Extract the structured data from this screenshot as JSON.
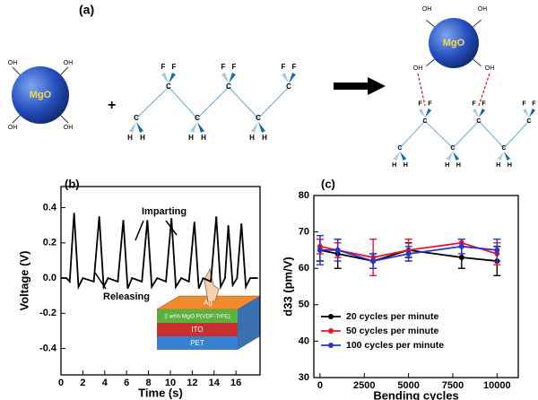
{
  "diagram": {
    "label": "(a)",
    "mgo": "MgO",
    "oh": "OH",
    "f": "F",
    "c": "C",
    "h": "H",
    "plus": "+"
  },
  "chart_data": [
    {
      "type": "line",
      "panel": "(b)",
      "xlabel": "Time (s)",
      "ylabel": "Voltage (V)",
      "x": [
        0,
        0.5,
        0.8,
        1.2,
        1.6,
        2.0,
        3.0,
        3.5,
        3.9,
        4.3,
        5.2,
        5.7,
        6.1,
        6.5,
        7.4,
        7.9,
        8.3,
        8.8,
        9.6,
        10.1,
        10.5,
        11,
        11.7,
        12.2,
        12.6,
        13,
        13.7,
        14.2,
        14.6,
        15,
        15.3,
        15.7,
        16.1,
        16.5,
        16.9,
        17.3,
        18
      ],
      "values": [
        0,
        0,
        -0.02,
        0.37,
        -0.05,
        0,
        -0.02,
        0.35,
        -0.05,
        0,
        -0.02,
        0.33,
        -0.06,
        0,
        -0.02,
        0.33,
        -0.05,
        0,
        -0.02,
        0.34,
        -0.05,
        0,
        -0.02,
        0.32,
        -0.06,
        0,
        -0.02,
        0.35,
        -0.05,
        0,
        0.3,
        -0.04,
        0,
        0.31,
        -0.05,
        0,
        0
      ],
      "color": "#000000",
      "xlim": [
        0,
        18.2
      ],
      "xticks": [
        0,
        2,
        4,
        6,
        8,
        10,
        12,
        14,
        16
      ],
      "ylim": [
        -0.55,
        0.52
      ],
      "yticks": [
        -0.4,
        -0.2,
        {
          "value": 0,
          "label": "0.0"
        },
        0.2,
        0.4
      ],
      "annotations": [
        "Imparting",
        "Releasing"
      ],
      "inset_labels": [
        "Ag",
        "2 wt% MgO P(VDF-TrFE)",
        "ITO",
        "PET"
      ]
    },
    {
      "type": "errorbar",
      "panel": "(c)",
      "xlabel": "Bending cycles",
      "ylabel": "d33 (pm/V)",
      "x": [
        0,
        1000,
        3000,
        5000,
        8000,
        10000
      ],
      "series": [
        {
          "name": "20 cycles per minute",
          "color": "#000000",
          "values": [
            65,
            64,
            62,
            65,
            63,
            62
          ],
          "errors": [
            3,
            4,
            2,
            2,
            3,
            4
          ]
        },
        {
          "name": "50 cycles per minute",
          "color": "#e8182a",
          "values": [
            66,
            65,
            63,
            65,
            67,
            64
          ],
          "errors": [
            2,
            2,
            5,
            3,
            1,
            3
          ]
        },
        {
          "name": "100 cycles per minute",
          "color": "#2a35c8",
          "values": [
            65,
            65,
            62,
            64,
            66,
            65
          ],
          "errors": [
            4,
            3,
            2,
            2,
            2,
            3
          ]
        }
      ],
      "xlim": [
        -350,
        11200
      ],
      "xticks": [
        0,
        2500,
        5000,
        7500,
        10000
      ],
      "ylim": [
        30,
        80
      ],
      "yticks": [
        30,
        40,
        50,
        60,
        70,
        80
      ],
      "legend": "lower left"
    }
  ]
}
